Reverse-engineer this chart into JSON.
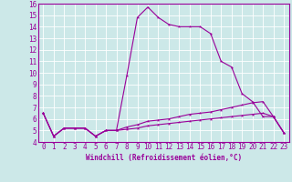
{
  "xlabel": "Windchill (Refroidissement éolien,°C)",
  "xlim": [
    -0.5,
    23.5
  ],
  "ylim": [
    4,
    16
  ],
  "xticks": [
    0,
    1,
    2,
    3,
    4,
    5,
    6,
    7,
    8,
    9,
    10,
    11,
    12,
    13,
    14,
    15,
    16,
    17,
    18,
    19,
    20,
    21,
    22,
    23
  ],
  "yticks": [
    4,
    5,
    6,
    7,
    8,
    9,
    10,
    11,
    12,
    13,
    14,
    15,
    16
  ],
  "bg_color": "#cce8e8",
  "grid_color": "#ffffff",
  "line_color": "#990099",
  "line1_x": [
    0,
    1,
    2,
    3,
    4,
    5,
    6,
    7,
    8,
    9,
    10,
    11,
    12,
    13,
    14,
    15,
    16,
    17,
    18,
    19,
    20,
    21,
    22,
    23
  ],
  "line1_y": [
    6.5,
    4.5,
    5.2,
    5.2,
    5.2,
    4.5,
    5.0,
    5.0,
    9.8,
    14.8,
    15.7,
    14.8,
    14.2,
    14.0,
    14.0,
    14.0,
    13.4,
    11.0,
    10.5,
    8.2,
    7.5,
    6.2,
    6.2,
    4.8
  ],
  "line2_x": [
    0,
    1,
    2,
    3,
    4,
    5,
    6,
    7,
    8,
    9,
    10,
    11,
    12,
    13,
    14,
    15,
    16,
    17,
    18,
    19,
    20,
    21,
    22,
    23
  ],
  "line2_y": [
    6.5,
    4.5,
    5.2,
    5.2,
    5.2,
    4.5,
    5.0,
    5.0,
    5.3,
    5.5,
    5.8,
    5.9,
    6.0,
    6.2,
    6.4,
    6.5,
    6.6,
    6.8,
    7.0,
    7.2,
    7.4,
    7.5,
    6.2,
    4.8
  ],
  "line3_x": [
    0,
    1,
    2,
    3,
    4,
    5,
    6,
    7,
    8,
    9,
    10,
    11,
    12,
    13,
    14,
    15,
    16,
    17,
    18,
    19,
    20,
    21,
    22,
    23
  ],
  "line3_y": [
    6.5,
    4.5,
    5.2,
    5.2,
    5.2,
    4.5,
    5.0,
    5.0,
    5.1,
    5.2,
    5.4,
    5.5,
    5.6,
    5.7,
    5.8,
    5.9,
    6.0,
    6.1,
    6.2,
    6.3,
    6.4,
    6.5,
    6.2,
    4.8
  ],
  "xlabel_fontsize": 5.5,
  "tick_fontsize": 5.5,
  "marker_size": 2.5,
  "linewidth": 0.8
}
